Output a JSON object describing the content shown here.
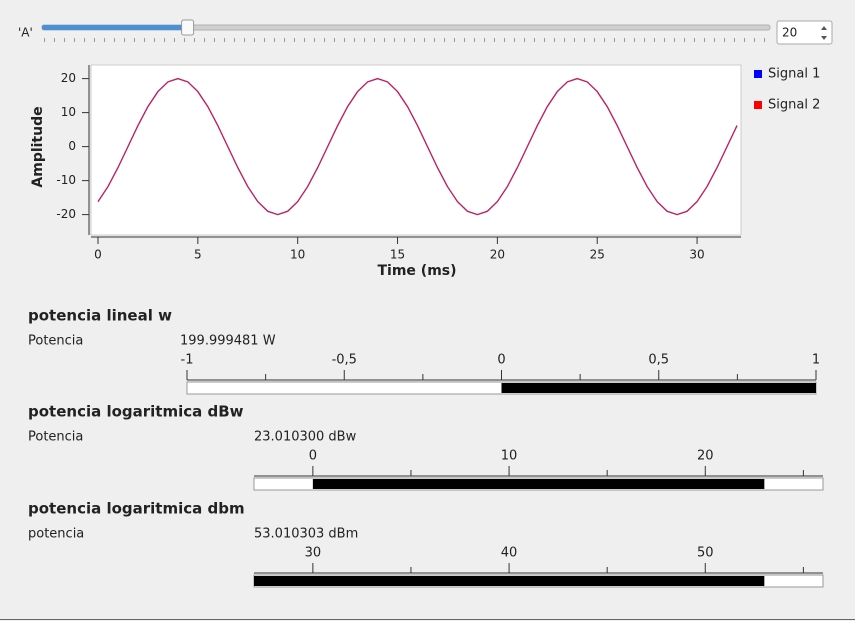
{
  "slider": {
    "label": "'A'",
    "value": 20,
    "min": 0,
    "max": 100
  },
  "chart_data": {
    "type": "line",
    "xlabel": "Time (ms)",
    "ylabel": "Amplitude",
    "x": [
      0,
      0.5,
      1,
      1.5,
      2,
      2.5,
      3,
      3.5,
      4,
      4.5,
      5,
      5.5,
      6,
      6.5,
      7,
      7.5,
      8,
      8.5,
      9,
      9.5,
      10,
      10.5,
      11,
      11.5,
      12,
      12.5,
      13,
      13.5,
      14,
      14.5,
      15,
      15.5,
      16,
      16.5,
      17,
      17.5,
      18,
      18.5,
      19,
      19.5,
      20,
      20.5,
      21,
      21.5,
      22,
      22.5,
      23,
      23.5,
      24,
      24.5,
      25,
      25.5,
      26,
      26.5,
      27,
      27.5,
      28,
      28.5,
      29,
      29.5,
      30,
      30.5,
      31,
      31.5,
      32
    ],
    "series": [
      {
        "name": "Signal 1",
        "color": "#0000ff",
        "values": [
          -16.18,
          -11.76,
          -6.18,
          0,
          6.18,
          11.76,
          16.18,
          19.02,
          20,
          19.02,
          16.18,
          11.76,
          6.18,
          0,
          -6.18,
          -11.76,
          -16.18,
          -19.02,
          -20,
          -19.02,
          -16.18,
          -11.76,
          -6.18,
          0,
          6.18,
          11.76,
          16.18,
          19.02,
          20,
          19.02,
          16.18,
          11.76,
          6.18,
          0,
          -6.18,
          -11.76,
          -16.18,
          -19.02,
          -20,
          -19.02,
          -16.18,
          -11.76,
          -6.18,
          0,
          6.18,
          11.76,
          16.18,
          19.02,
          20,
          19.02,
          16.18,
          11.76,
          6.18,
          0,
          -6.18,
          -11.76,
          -16.18,
          -19.02,
          -20,
          -19.02,
          -16.18,
          -11.76,
          -6.18,
          0,
          6.18
        ]
      },
      {
        "name": "Signal 2",
        "color": "#ff0000",
        "values": [
          -16.18,
          -11.76,
          -6.18,
          0,
          6.18,
          11.76,
          16.18,
          19.02,
          20,
          19.02,
          16.18,
          11.76,
          6.18,
          0,
          -6.18,
          -11.76,
          -16.18,
          -19.02,
          -20,
          -19.02,
          -16.18,
          -11.76,
          -6.18,
          0,
          6.18,
          11.76,
          16.18,
          19.02,
          20,
          19.02,
          16.18,
          11.76,
          6.18,
          0,
          -6.18,
          -11.76,
          -16.18,
          -19.02,
          -20,
          -19.02,
          -16.18,
          -11.76,
          -6.18,
          0,
          6.18,
          11.76,
          16.18,
          19.02,
          20,
          19.02,
          16.18,
          11.76,
          6.18,
          0,
          -6.18,
          -11.76,
          -16.18,
          -19.02,
          -20,
          -19.02,
          -16.18,
          -11.76,
          -6.18,
          0,
          6.18
        ]
      }
    ],
    "xlim": [
      0,
      32.2
    ],
    "xticks": [
      0,
      5,
      10,
      15,
      20,
      25,
      30
    ],
    "ylim": [
      -26,
      24
    ],
    "yticks": [
      -20,
      -10,
      0,
      10,
      20
    ]
  },
  "gauges": [
    {
      "title": "potencia lineal w",
      "label": "Potencia",
      "value": 199.999481,
      "value_label": "199.999481 W",
      "xlim": [
        -1,
        1
      ],
      "xticks": [
        -1,
        {
          "value": -0.5,
          "label": "-0,5"
        },
        0,
        {
          "value": 0.5,
          "label": "0,5"
        },
        1
      ],
      "minor_ticks": [
        -0.75,
        -0.25,
        0.25,
        0.75
      ]
    },
    {
      "title": "potencia logaritmica dBw",
      "label": "Potencia",
      "value": 23.0103,
      "value_label": "23.010300 dBw",
      "xlim": [
        -3,
        26
      ],
      "xticks": [
        0,
        10,
        20
      ],
      "minor_ticks": [
        5,
        15,
        25
      ]
    },
    {
      "title": "potencia logaritmica dbm",
      "label": "potencia",
      "value": 53.010303,
      "value_label": "53.010303 dBm",
      "xlim": [
        27,
        56
      ],
      "xticks": [
        30,
        40,
        50
      ],
      "minor_ticks": [
        35,
        45,
        55
      ]
    }
  ]
}
